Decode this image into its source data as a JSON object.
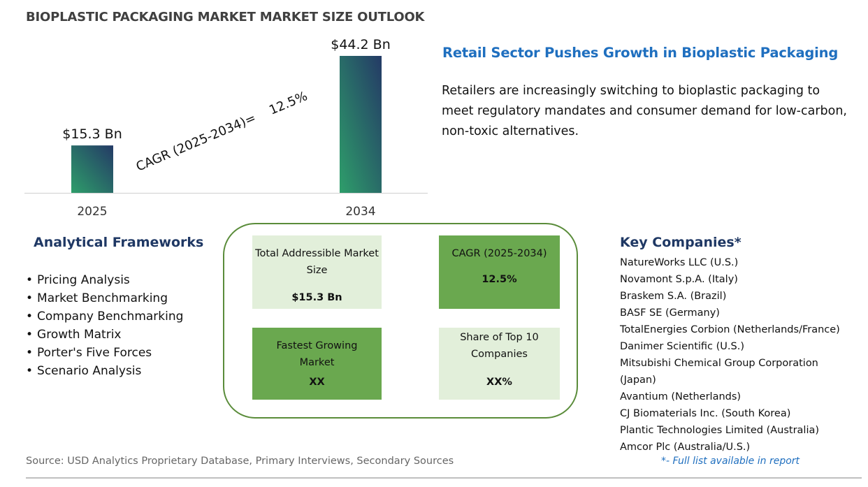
{
  "title": "BIOPLASTIC PACKAGING MARKET MARKET SIZE OUTLOOK",
  "chart_data": {
    "type": "bar",
    "categories": [
      "2025",
      "2034"
    ],
    "values": [
      15.3,
      44.2
    ],
    "value_labels": [
      "$15.3 Bn",
      "$44.2 Bn"
    ],
    "title": "",
    "xlabel": "",
    "ylabel": "",
    "ylim": [
      0,
      44.2
    ],
    "grid": false,
    "annotation": "CAGR (2025-2034)=    12.5%",
    "bar_gradient": [
      "#2e9e6a",
      "#243a66"
    ]
  },
  "headline": "Retail Sector Pushes Growth in Bioplastic Packaging",
  "description": "Retailers are increasingly switching to bioplastic packaging to meet regulatory mandates and consumer demand for low-carbon, non-toxic alternatives.",
  "frameworks": {
    "heading": "Analytical Frameworks",
    "items": [
      "Pricing Analysis",
      "Market Benchmarking",
      "Company Benchmarking",
      "Growth Matrix",
      "Porter's Five Forces",
      "Scenario Analysis"
    ]
  },
  "metrics": {
    "tam": {
      "label": "Total Addressible Market Size",
      "value": "$15.3 Bn"
    },
    "cagr": {
      "label": "CAGR (2025-2034)",
      "value": "12.5%"
    },
    "fastest": {
      "label": "Fastest Growing Market",
      "value": "XX"
    },
    "share": {
      "label": "Share of Top 10 Companies",
      "value": "XX%"
    }
  },
  "companies": {
    "heading": "Key Companies*",
    "items": [
      "NatureWorks LLC (U.S.)",
      "Novamont S.p.A. (Italy)",
      "Braskem S.A. (Brazil)",
      "BASF SE (Germany)",
      "TotalEnergies Corbion (Netherlands/France)",
      "Danimer Scientific (U.S.)",
      "Mitsubishi Chemical Group Corporation (Japan)",
      "Avantium (Netherlands)",
      "CJ Biomaterials Inc. (South Korea)",
      "Plantic Technologies Limited (Australia)",
      "Amcor Plc (Australia/U.S.)"
    ],
    "footnote": "*- Full list available in report"
  },
  "source": "Source: USD Analytics Proprietary Database, Primary Interviews, Secondary Sources",
  "colors": {
    "title": "#404040",
    "headline": "#1f6fbf",
    "heading": "#1f3864",
    "tile_light": "#e2efda",
    "tile_dark": "#6aa84f",
    "frame": "#5a8c3a"
  }
}
